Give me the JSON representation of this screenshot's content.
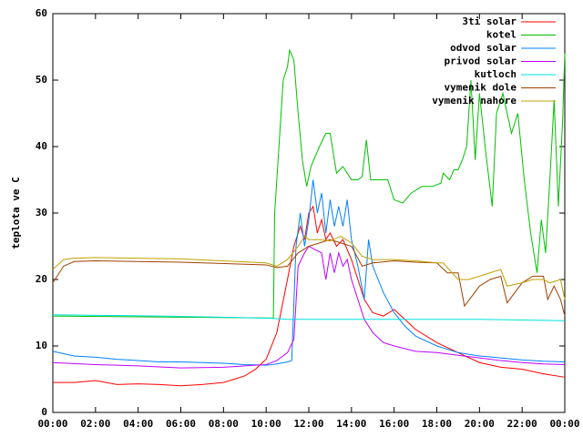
{
  "chart_data": {
    "type": "line",
    "ylabel": "teplota ve C",
    "xlim": [
      0,
      24
    ],
    "ylim": [
      0,
      60
    ],
    "xticks": [
      {
        "value": 0,
        "label": "00:00"
      },
      {
        "value": 2,
        "label": "02:00"
      },
      {
        "value": 4,
        "label": "04:00"
      },
      {
        "value": 6,
        "label": "06:00"
      },
      {
        "value": 8,
        "label": "08:00"
      },
      {
        "value": 10,
        "label": "10:00"
      },
      {
        "value": 12,
        "label": "12:00"
      },
      {
        "value": 14,
        "label": "14:00"
      },
      {
        "value": 16,
        "label": "16:00"
      },
      {
        "value": 18,
        "label": "18:00"
      },
      {
        "value": 20,
        "label": "20:00"
      },
      {
        "value": 22,
        "label": "22:00"
      },
      {
        "value": 24,
        "label": "00:00"
      }
    ],
    "yticks": [
      0,
      10,
      20,
      30,
      40,
      50,
      60
    ],
    "grid": false,
    "legend": "top-right",
    "series": [
      {
        "name": "3ti solar",
        "color": "#ff0000",
        "x": [
          0,
          1,
          2,
          3,
          4,
          5,
          6,
          7,
          8,
          9,
          9.5,
          10,
          10.5,
          11,
          11.3,
          11.6,
          11.8,
          12,
          12.2,
          12.4,
          12.6,
          12.8,
          13,
          13.3,
          13.6,
          14,
          14.3,
          14.6,
          15,
          15.5,
          16,
          16.5,
          17,
          18,
          19,
          20,
          21,
          22,
          23,
          24
        ],
        "values": [
          4.5,
          4.5,
          4.8,
          4.2,
          4.3,
          4.2,
          4.0,
          4.2,
          4.5,
          5.5,
          6.5,
          8,
          12,
          20,
          25,
          28,
          26,
          30,
          31,
          27,
          29,
          26,
          27,
          25,
          26,
          23,
          20,
          17,
          15,
          14.5,
          15.5,
          14,
          12.5,
          10.5,
          9,
          7.5,
          6.8,
          6.5,
          5.8,
          5.3
        ]
      },
      {
        "name": "kotel",
        "color": "#00c000",
        "x": [
          0,
          10.34,
          10.4,
          10.6,
          10.8,
          11,
          11.1,
          11.3,
          11.5,
          11.7,
          11.9,
          12.1,
          12.5,
          12.8,
          13,
          13.3,
          13.6,
          14,
          14.3,
          14.5,
          14.7,
          14.9,
          15.3,
          15.7,
          16,
          16.4,
          16.8,
          17.3,
          17.8,
          18.2,
          18.3,
          18.6,
          18.8,
          19,
          19.2,
          19.4,
          19.6,
          19.8,
          20,
          20.3,
          20.6,
          20.8,
          21.1,
          21.5,
          21.8,
          22.1,
          22.4,
          22.7,
          22.9,
          23.1,
          23.3,
          23.5,
          23.7,
          23.9,
          24
        ],
        "values": [
          14.5,
          14.2,
          30,
          40,
          50,
          52,
          54.5,
          53,
          45,
          38,
          34,
          37,
          40,
          42,
          42,
          36,
          37,
          35,
          35,
          35.5,
          41,
          35,
          35,
          35,
          32,
          31.5,
          33,
          34,
          34,
          34.5,
          36,
          35,
          36.5,
          36.5,
          38,
          40,
          50,
          38,
          48,
          39,
          31,
          45,
          48,
          42,
          45,
          35,
          27,
          21,
          29,
          24,
          35,
          47,
          31,
          44,
          54
        ]
      },
      {
        "name": "odvod solar",
        "color": "#0080ff",
        "x": [
          0,
          1,
          2,
          3,
          4,
          5,
          6,
          7,
          8,
          9,
          10,
          10.5,
          11,
          11.2,
          11.4,
          11.6,
          11.8,
          12,
          12.2,
          12.4,
          12.6,
          12.8,
          13,
          13.2,
          13.4,
          13.6,
          13.8,
          14,
          14.3,
          14.6,
          14.8,
          15,
          15.5,
          16,
          16.5,
          17,
          18,
          19,
          20,
          21,
          22,
          23,
          24
        ],
        "values": [
          9.2,
          8.5,
          8.3,
          8,
          7.8,
          7.6,
          7.6,
          7.5,
          7.4,
          7.2,
          7.1,
          7.3,
          7.6,
          7.8,
          25,
          30,
          25,
          29,
          35,
          30,
          33,
          27,
          32,
          28,
          31,
          28,
          32,
          26,
          22,
          17,
          26,
          22,
          18,
          15,
          13,
          11.5,
          10,
          9,
          8.5,
          8.2,
          7.9,
          7.7,
          7.6
        ]
      },
      {
        "name": "privod solar",
        "color": "#c000ff",
        "x": [
          0,
          2,
          4,
          6,
          8,
          9,
          10,
          10.5,
          11,
          11.3,
          11.5,
          11.8,
          12,
          12.3,
          12.6,
          12.8,
          13,
          13.2,
          13.4,
          13.6,
          13.8,
          14,
          14.3,
          14.6,
          15,
          15.5,
          16,
          17,
          18,
          19,
          20,
          21,
          22,
          23,
          24
        ],
        "values": [
          7.5,
          7.2,
          7.0,
          6.7,
          6.8,
          7.0,
          7.2,
          7.8,
          9,
          11,
          22,
          24,
          25,
          24.5,
          24,
          20,
          24,
          21,
          24,
          22,
          23,
          20,
          17,
          14,
          12,
          10.5,
          10,
          9.2,
          9,
          8.6,
          8.2,
          7.8,
          7.5,
          7.3,
          7.2
        ]
      },
      {
        "name": "kutloch",
        "color": "#00e0e0",
        "x": [
          0,
          5,
          10,
          11,
          12,
          16,
          20,
          24
        ],
        "values": [
          14.7,
          14.5,
          14.2,
          14.0,
          14,
          14,
          14,
          13.8
        ]
      },
      {
        "name": "vymenik dole",
        "color": "#a04000",
        "x": [
          0,
          0.5,
          1,
          2,
          6,
          10,
          10.5,
          11,
          11.5,
          12,
          12.5,
          13,
          13.5,
          14,
          14.5,
          15,
          16,
          17,
          18,
          18.5,
          19,
          19.3,
          20,
          20.5,
          21,
          21.3,
          22,
          22.5,
          23,
          23.2,
          23.5,
          23.8,
          24
        ],
        "values": [
          19.5,
          22,
          22.7,
          22.8,
          22.6,
          22.2,
          21.8,
          22,
          24,
          25,
          25.5,
          26,
          25.5,
          25,
          22,
          22.5,
          22.8,
          22.6,
          22.5,
          21,
          21,
          16,
          19,
          20,
          20.5,
          16.5,
          19.5,
          20.5,
          20.5,
          17,
          19,
          17,
          14.5
        ]
      },
      {
        "name": "vymenik nahore",
        "color": "#c0a000",
        "x": [
          0,
          0.5,
          1,
          2,
          6,
          10,
          10.5,
          11,
          11.5,
          11.8,
          12,
          12.5,
          13,
          13.5,
          14,
          14.5,
          15,
          16,
          17,
          18,
          18.3,
          19,
          19.5,
          20,
          21,
          21.3,
          22,
          22.5,
          23,
          23.3,
          23.8,
          24
        ],
        "values": [
          21.5,
          23,
          23.2,
          23.3,
          23.1,
          22.5,
          22,
          23,
          25,
          26.5,
          26,
          26,
          25.8,
          26.5,
          25.5,
          23.5,
          23,
          23,
          22.8,
          22.5,
          22.5,
          20,
          20,
          20.5,
          21.5,
          19,
          19.5,
          20,
          20,
          19.5,
          20,
          17
        ]
      }
    ]
  }
}
